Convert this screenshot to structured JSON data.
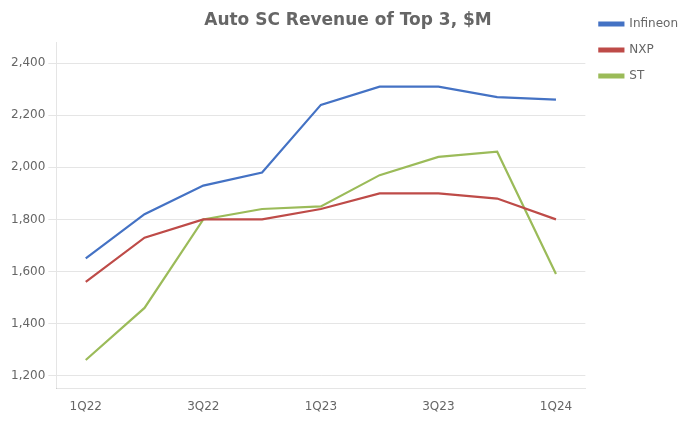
{
  "chart_data": {
    "type": "line",
    "title": "Auto SC Revenue of Top 3, $M",
    "categories": [
      "1Q22",
      null,
      "3Q22",
      null,
      "1Q23",
      null,
      "3Q23",
      null,
      "1Q24"
    ],
    "series": [
      {
        "name": "Infineon",
        "color": "#4472C4",
        "values": [
          1650,
          1820,
          1930,
          1980,
          2240,
          2310,
          2310,
          2270,
          2260
        ]
      },
      {
        "name": "NXP",
        "color": "#BE4B48",
        "values": [
          1560,
          1730,
          1800,
          1800,
          1840,
          1900,
          1900,
          1880,
          1800
        ]
      },
      {
        "name": "ST",
        "color": "#9BBB59",
        "values": [
          1260,
          1460,
          1800,
          1840,
          1850,
          1970,
          2040,
          2060,
          1590
        ]
      }
    ],
    "ylim": [
      1150,
      2480
    ],
    "yticks": [
      {
        "value": 1200,
        "label": "1,200"
      },
      {
        "value": 1400,
        "label": "1,400"
      },
      {
        "value": 1600,
        "label": "1,600"
      },
      {
        "value": 1800,
        "label": "1,800"
      },
      {
        "value": 2000,
        "label": "2,000"
      },
      {
        "value": 2200,
        "label": "2,200"
      },
      {
        "value": 2400,
        "label": "2,400"
      }
    ],
    "grid": true,
    "legend": "upper right"
  }
}
